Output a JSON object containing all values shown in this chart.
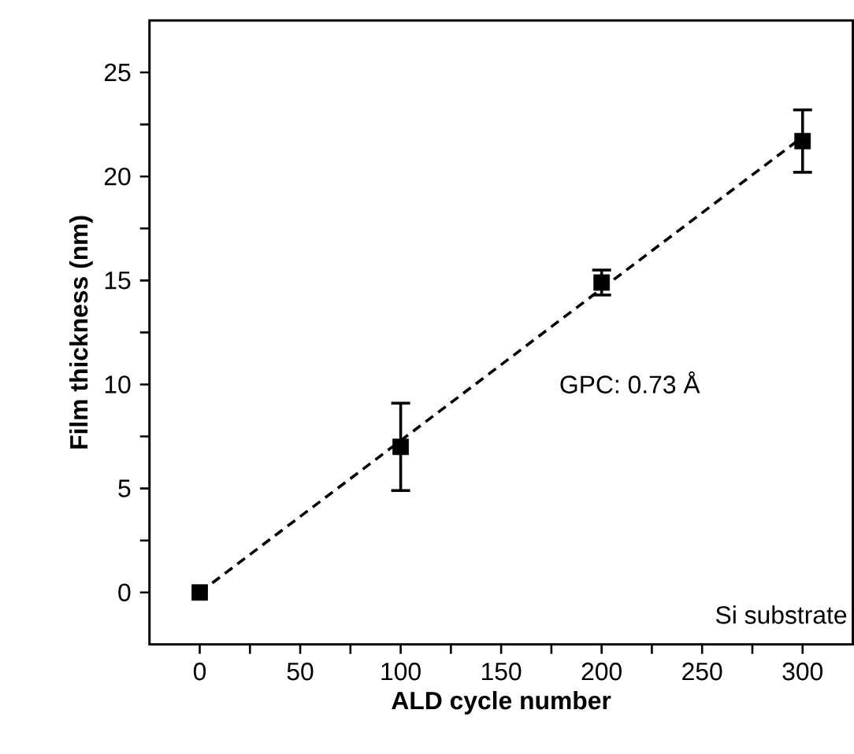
{
  "chart_data": {
    "type": "scatter",
    "xlabel": "ALD cycle number",
    "ylabel": "Film thickness (nm)",
    "x": [
      0,
      100,
      200,
      300
    ],
    "series": [
      {
        "color": "#000000",
        "marker": "square",
        "values": [
          0,
          7.0,
          14.9,
          21.7
        ],
        "errors": [
          null,
          2.1,
          0.6,
          1.5
        ]
      },
      {
        "type": "line",
        "color": "#000000",
        "marker": "none",
        "line_style": "dashed",
        "x": [
          0,
          300
        ],
        "values": [
          0,
          21.9
        ]
      }
    ],
    "xlim": [
      -25,
      325
    ],
    "ylim": [
      -2.5,
      27.5
    ],
    "xticks": [
      0,
      {
        "value": 25,
        "label": null
      },
      50,
      {
        "value": 75,
        "label": null
      },
      100,
      {
        "value": 125,
        "label": null
      },
      150,
      {
        "value": 175,
        "label": null
      },
      200,
      {
        "value": 225,
        "label": null
      },
      250,
      {
        "value": 275,
        "label": null
      },
      300
    ],
    "yticks": [
      0,
      {
        "value": 2.5,
        "label": null
      },
      5,
      {
        "value": 7.5,
        "label": null
      },
      10,
      {
        "value": 12.5,
        "label": null
      },
      15,
      {
        "value": 17.5,
        "label": null
      },
      20,
      {
        "value": 22.5,
        "label": null
      },
      25
    ],
    "grid": false,
    "annotations": [
      "GPC: 0.73 Å",
      "Si substrate"
    ]
  }
}
